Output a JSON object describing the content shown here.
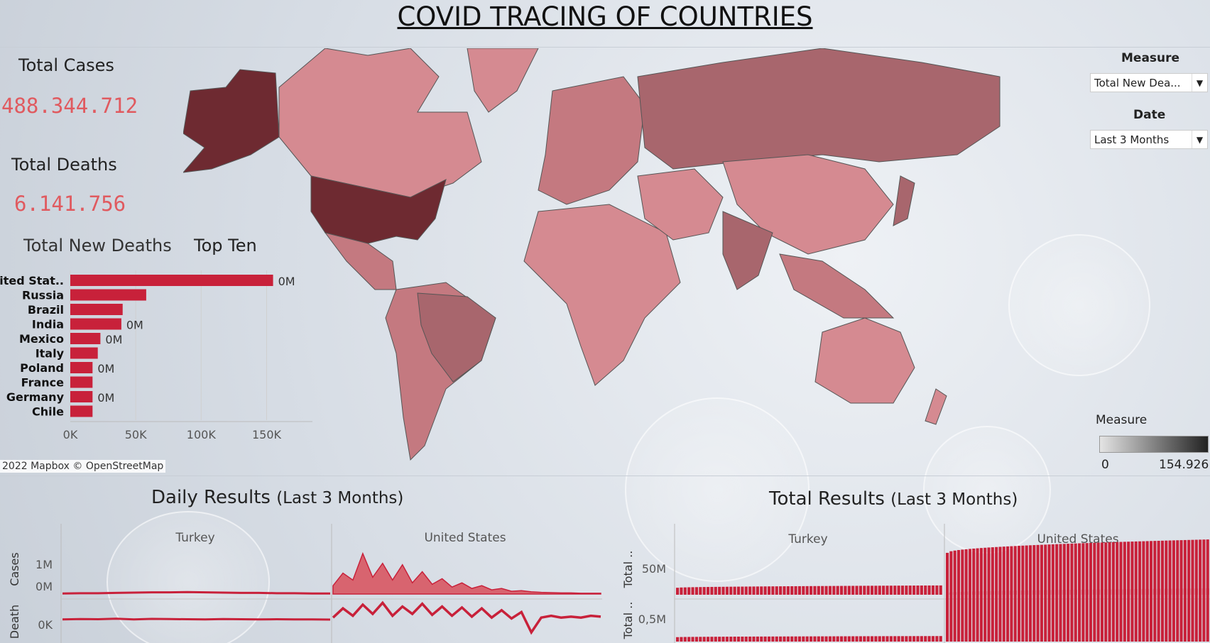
{
  "dashboard": {
    "title": "COVID TRACING OF COUNTRIES",
    "total_cases_label": "Total Cases",
    "total_cases_value": "488.344.712",
    "total_deaths_label": "Total Deaths",
    "total_deaths_value": "6.141.756",
    "map_attribution": "2022 Mapbox © OpenStreetMap"
  },
  "filters": {
    "measure_label": "Measure",
    "measure_value": "Total New Dea...",
    "date_label": "Date",
    "date_value": "Last 3 Months"
  },
  "legend": {
    "title": "Measure",
    "min": "0",
    "max": "154.926"
  },
  "colors": {
    "bar": "#c8213a",
    "map_light": "#d58a91",
    "map_mid": "#a8666d",
    "map_dark": "#6e2a31",
    "kpi": "#e05a5f"
  },
  "sections": {
    "daily_title": "Daily Results",
    "daily_sub": "(Last 3 Months)",
    "total_title": "Total Results",
    "total_sub": "(Last 3 Months)"
  },
  "chart_data": [
    {
      "type": "bar",
      "title_main": "Total New Deaths",
      "title_tail": "Top Ten",
      "orientation": "horizontal",
      "categories": [
        "United Stat..",
        "Russia",
        "Brazil",
        "India",
        "Mexico",
        "Italy",
        "Poland",
        "France",
        "Germany",
        "Chile"
      ],
      "values": [
        154926,
        58000,
        40000,
        39000,
        23000,
        21000,
        17000,
        17000,
        17000,
        17000
      ],
      "data_labels": [
        "0M",
        "",
        "",
        "0M",
        "0M",
        "",
        "0M",
        "",
        "0M",
        ""
      ],
      "xticks": [
        "0K",
        "50K",
        "100K",
        "150K"
      ],
      "xlim": [
        0,
        185000
      ]
    },
    {
      "type": "area",
      "title": "Daily Results",
      "panels": [
        "Turkey",
        "United States"
      ],
      "rows": [
        {
          "label": "Cases",
          "yticks": [
            "1M",
            "0M"
          ]
        },
        {
          "label": "Death",
          "yticks": [
            "0K"
          ]
        }
      ],
      "series": [
        {
          "name": "Turkey Cases",
          "values": [
            0.02,
            0.03,
            0.03,
            0.04,
            0.05,
            0.06,
            0.06,
            0.07,
            0.06,
            0.05,
            0.04,
            0.04,
            0.03,
            0.03,
            0.02,
            0.02
          ]
        },
        {
          "name": "United States Cases",
          "values": [
            0.3,
            0.75,
            0.5,
            1.45,
            0.6,
            1.1,
            0.5,
            1.05,
            0.4,
            0.8,
            0.35,
            0.55,
            0.25,
            0.4,
            0.2,
            0.3,
            0.15,
            0.2,
            0.1,
            0.12,
            0.08,
            0.06,
            0.05,
            0.04,
            0.04,
            0.03,
            0.03,
            0.03
          ]
        },
        {
          "name": "Turkey Death",
          "values": [
            0.2,
            0.22,
            0.21,
            0.24,
            0.2,
            0.23,
            0.22,
            0.21,
            0.2,
            0.22,
            0.21,
            0.2,
            0.21,
            0.2,
            0.2,
            0.19
          ]
        },
        {
          "name": "United States Death",
          "values": [
            0.3,
            0.8,
            0.4,
            1.0,
            0.5,
            1.1,
            0.4,
            0.9,
            0.5,
            1.05,
            0.45,
            0.9,
            0.4,
            0.85,
            0.35,
            0.8,
            0.3,
            0.7,
            0.25,
            0.6,
            -0.5,
            0.3,
            0.4,
            0.3,
            0.35,
            0.3,
            0.4,
            0.35
          ]
        }
      ]
    },
    {
      "type": "bar",
      "title": "Total Results",
      "panels": [
        "Turkey",
        "United States"
      ],
      "rows": [
        {
          "label": "Total ..",
          "yticks": [
            "50M"
          ]
        },
        {
          "label": "Total ..",
          "yticks": [
            "0,5M"
          ]
        }
      ],
      "series": [
        {
          "name": "Turkey Total Cases",
          "start": 0.12,
          "end": 0.16
        },
        {
          "name": "United States Total Cases",
          "start": 0.72,
          "end": 0.95
        },
        {
          "name": "Turkey Total Deaths",
          "start": 0.08,
          "end": 0.1
        },
        {
          "name": "United States Total Deaths",
          "start": 0.88,
          "end": 0.96
        }
      ]
    }
  ]
}
